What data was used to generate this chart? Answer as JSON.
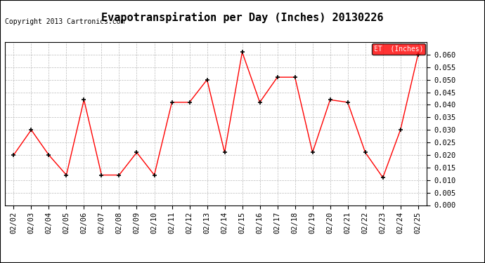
{
  "title": "Evapotranspiration per Day (Inches) 20130226",
  "copyright": "Copyright 2013 Cartronics.com",
  "dates": [
    "02/02",
    "02/03",
    "02/04",
    "02/05",
    "02/06",
    "02/07",
    "02/08",
    "02/09",
    "02/10",
    "02/11",
    "02/12",
    "02/13",
    "02/14",
    "02/15",
    "02/16",
    "02/17",
    "02/18",
    "02/19",
    "02/20",
    "02/21",
    "02/22",
    "02/23",
    "02/24",
    "02/25"
  ],
  "values": [
    0.02,
    0.03,
    0.02,
    0.012,
    0.042,
    0.012,
    0.012,
    0.021,
    0.012,
    0.041,
    0.041,
    0.05,
    0.021,
    0.061,
    0.041,
    0.051,
    0.051,
    0.021,
    0.042,
    0.041,
    0.021,
    0.011,
    0.03,
    0.06
  ],
  "ylim": [
    0.0,
    0.065
  ],
  "yticks": [
    0.0,
    0.005,
    0.01,
    0.015,
    0.02,
    0.025,
    0.03,
    0.035,
    0.04,
    0.045,
    0.05,
    0.055,
    0.06
  ],
  "line_color": "red",
  "marker": "+",
  "marker_color": "black",
  "legend_label": "ET  (Inches)",
  "legend_bg": "red",
  "legend_text_color": "white",
  "background_color": "white",
  "grid_color": "#bbbbbb",
  "title_fontsize": 11,
  "copyright_fontsize": 7,
  "tick_fontsize": 7.5,
  "fig_width": 6.9,
  "fig_height": 3.75
}
